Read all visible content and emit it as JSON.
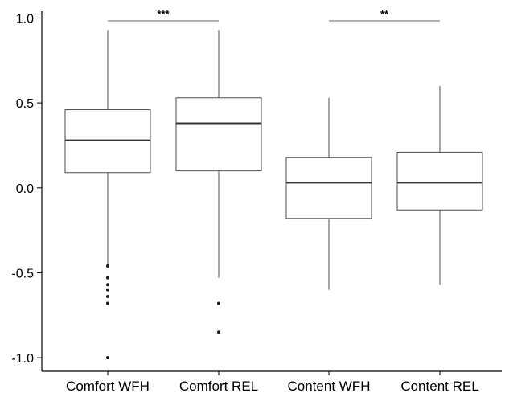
{
  "chart_data": {
    "type": "box",
    "title": "",
    "xlabel": "",
    "ylabel": "",
    "ylim": [
      -1.08,
      1.04
    ],
    "yticks": [
      1.0,
      0.5,
      0.0,
      -0.5,
      -1.0
    ],
    "ytick_labels": [
      "1.0",
      "0.5",
      "0.0",
      "-0.5",
      "-1.0"
    ],
    "categories": [
      "Comfort WFH",
      "Comfort REL",
      "Content WFH",
      "Content REL"
    ],
    "boxes": [
      {
        "category": "Comfort WFH",
        "whisker_low": -0.45,
        "q1": 0.09,
        "median": 0.28,
        "q3": 0.46,
        "whisker_high": 0.93,
        "outliers": [
          -0.46,
          -0.53,
          -0.57,
          -0.6,
          -0.64,
          -0.68,
          -1.0
        ]
      },
      {
        "category": "Comfort REL",
        "whisker_low": -0.53,
        "q1": 0.1,
        "median": 0.38,
        "q3": 0.53,
        "whisker_high": 0.93,
        "outliers": [
          -0.68,
          -0.85
        ]
      },
      {
        "category": "Content WFH",
        "whisker_low": -0.6,
        "q1": -0.18,
        "median": 0.03,
        "q3": 0.18,
        "whisker_high": 0.53,
        "outliers": []
      },
      {
        "category": "Content REL",
        "whisker_low": -0.57,
        "q1": -0.13,
        "median": 0.03,
        "q3": 0.21,
        "whisker_high": 0.6,
        "outliers": []
      }
    ],
    "significance": [
      {
        "from": "Comfort WFH",
        "to": "Comfort REL",
        "label": "***",
        "y": 1.0
      },
      {
        "from": "Content WFH",
        "to": "Content REL",
        "label": "**",
        "y": 1.0
      }
    ],
    "grid": false,
    "legend": "none"
  }
}
